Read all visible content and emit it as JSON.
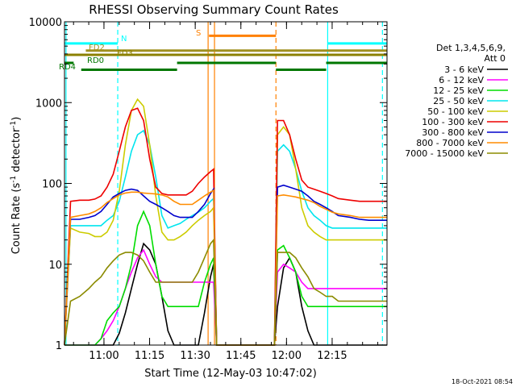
{
  "chart_data": {
    "type": "line",
    "title": "RHESSI Observing Summary Count Rates",
    "xlabel": "Start Time (12-May-03 10:47:02)",
    "ylabel_prefix": "Count Rate (s",
    "ylabel_sup": "-1",
    "ylabel_mid": " detector",
    "ylabel_suffix": ")",
    "footer": "18-Oct-2021 08:54",
    "ylog": true,
    "ylim": [
      1,
      10000
    ],
    "xlim_minutes_from_start": [
      0,
      106
    ],
    "y_ticks": [
      {
        "value": 1,
        "label": "1"
      },
      {
        "value": 10,
        "label": "10"
      },
      {
        "value": 100,
        "label": "100"
      },
      {
        "value": 1000,
        "label": "1000"
      },
      {
        "value": 10000,
        "label": "10000"
      }
    ],
    "x_ticks": [
      {
        "minute": 12.97,
        "label": "11:00"
      },
      {
        "minute": 27.97,
        "label": "11:15"
      },
      {
        "minute": 42.97,
        "label": "11:30"
      },
      {
        "minute": 57.97,
        "label": "11:45"
      },
      {
        "minute": 72.97,
        "label": "12:00"
      },
      {
        "minute": 87.97,
        "label": "12:15"
      }
    ],
    "legend_header": [
      "Det 1,3,4,5,6,9,",
      "Att 0"
    ],
    "series": [
      {
        "name": "3 - 6 keV",
        "color": "#000000",
        "x": [
          0,
          10,
          14,
          16,
          18,
          20,
          22,
          24,
          26,
          28,
          30,
          32,
          34,
          36,
          38,
          40,
          42,
          44,
          46,
          48,
          49,
          50,
          57,
          62,
          68,
          69,
          70,
          72,
          74,
          76,
          78,
          80,
          82,
          84,
          86,
          88,
          90,
          92,
          94,
          97,
          100,
          103,
          106
        ],
        "y": [
          1,
          1,
          1,
          1,
          1.4,
          2.5,
          5,
          10,
          18,
          15,
          10,
          4,
          1.5,
          1,
          1,
          1,
          1,
          1,
          2.5,
          7,
          10,
          1,
          1,
          1,
          1,
          1,
          3,
          9,
          12,
          8,
          3,
          1.5,
          1,
          1,
          1,
          1,
          1,
          1,
          1,
          1,
          1,
          1,
          1
        ]
      },
      {
        "name": "6 - 12 keV",
        "color": "#ff00ff",
        "x": [
          0,
          10,
          12,
          14,
          16,
          18,
          20,
          22,
          24,
          26,
          28,
          30,
          32,
          34,
          36,
          38,
          40,
          42,
          44,
          46,
          48,
          49,
          50,
          57,
          62,
          68,
          69,
          70,
          72,
          74,
          76,
          78,
          80,
          82,
          84,
          86,
          88,
          90,
          94,
          97,
          100,
          103,
          106
        ],
        "y": [
          1,
          1,
          1.2,
          1.5,
          2,
          3,
          5,
          8,
          12,
          15,
          10,
          7,
          6,
          6,
          6,
          6,
          6,
          6,
          6,
          6,
          6,
          6,
          1,
          1,
          1,
          1,
          1,
          8,
          10,
          9,
          8,
          6,
          5,
          5,
          5,
          5,
          5,
          5,
          5,
          5,
          5,
          5,
          5
        ]
      },
      {
        "name": "12 - 25 keV",
        "color": "#00dd00",
        "x": [
          0,
          10,
          12,
          14,
          16,
          18,
          20,
          22,
          24,
          26,
          28,
          30,
          32,
          34,
          36,
          38,
          40,
          42,
          44,
          46,
          48,
          49,
          50,
          57,
          62,
          68,
          69,
          70,
          72,
          74,
          76,
          78,
          80,
          82,
          84,
          86,
          88,
          90,
          94,
          97,
          100,
          103,
          106
        ],
        "y": [
          1,
          1,
          1.2,
          2,
          2.5,
          3,
          5,
          10,
          30,
          45,
          30,
          10,
          4,
          3,
          3,
          3,
          3,
          3,
          3,
          6,
          10,
          12,
          1,
          1,
          1,
          1,
          1,
          15,
          17,
          12,
          8,
          4,
          3,
          3,
          3,
          3,
          3,
          3,
          3,
          3,
          3,
          3,
          3
        ]
      },
      {
        "name": "25 - 50 keV",
        "color": "#00e5ee",
        "x": [
          0,
          2,
          5,
          8,
          10,
          12,
          14,
          16,
          18,
          20,
          22,
          24,
          26,
          28,
          30,
          32,
          34,
          36,
          38,
          40,
          42,
          44,
          46,
          48,
          49,
          50,
          57,
          62,
          68,
          69,
          70,
          72,
          74,
          76,
          78,
          80,
          82,
          84,
          86,
          88,
          90,
          94,
          97,
          100,
          103,
          106
        ],
        "y": [
          1,
          30,
          30,
          30,
          30,
          30,
          35,
          40,
          60,
          120,
          250,
          400,
          450,
          300,
          120,
          40,
          28,
          30,
          32,
          36,
          40,
          44,
          50,
          60,
          65,
          1,
          1,
          1,
          1,
          1,
          250,
          300,
          250,
          150,
          80,
          50,
          40,
          35,
          30,
          28,
          28,
          28,
          28,
          28,
          28,
          28
        ]
      },
      {
        "name": "50 - 100 keV",
        "color": "#cccc00",
        "x": [
          0,
          2,
          5,
          8,
          10,
          12,
          14,
          16,
          18,
          20,
          22,
          24,
          26,
          28,
          30,
          32,
          34,
          36,
          38,
          40,
          42,
          44,
          46,
          48,
          49,
          50,
          57,
          62,
          68,
          69,
          70,
          72,
          74,
          76,
          78,
          80,
          82,
          84,
          86,
          88,
          90,
          94,
          97,
          100,
          103,
          106
        ],
        "y": [
          1,
          28,
          25,
          24,
          22,
          22,
          25,
          35,
          80,
          300,
          800,
          1100,
          900,
          300,
          70,
          25,
          20,
          20,
          22,
          25,
          30,
          35,
          40,
          45,
          50,
          1,
          1,
          1,
          1,
          1,
          400,
          500,
          400,
          150,
          50,
          30,
          25,
          22,
          20,
          20,
          20,
          20,
          20,
          20,
          20,
          20
        ]
      },
      {
        "name": "100 - 300 keV",
        "color": "#ee0000",
        "x": [
          0,
          2,
          5,
          8,
          10,
          12,
          14,
          16,
          18,
          20,
          22,
          24,
          26,
          28,
          30,
          32,
          34,
          36,
          38,
          40,
          42,
          44,
          46,
          48,
          49,
          50,
          57,
          62,
          68,
          69,
          70,
          72,
          74,
          76,
          78,
          80,
          82,
          84,
          86,
          88,
          90,
          94,
          97,
          100,
          103,
          106
        ],
        "y": [
          1,
          60,
          62,
          62,
          64,
          70,
          90,
          130,
          250,
          500,
          800,
          850,
          600,
          200,
          90,
          75,
          72,
          72,
          72,
          72,
          80,
          100,
          120,
          140,
          150,
          1,
          1,
          1,
          1,
          1,
          600,
          600,
          400,
          200,
          110,
          90,
          85,
          80,
          75,
          70,
          65,
          62,
          60,
          60,
          60,
          60
        ]
      },
      {
        "name": "300 - 800 keV",
        "color": "#0000cc",
        "x": [
          0,
          2,
          5,
          8,
          10,
          12,
          14,
          16,
          18,
          20,
          22,
          24,
          26,
          28,
          30,
          32,
          34,
          36,
          38,
          40,
          42,
          44,
          46,
          48,
          49,
          50,
          57,
          62,
          68,
          69,
          70,
          72,
          74,
          76,
          78,
          80,
          82,
          84,
          86,
          88,
          90,
          94,
          97,
          100,
          103,
          106
        ],
        "y": [
          1,
          36,
          36,
          38,
          40,
          45,
          55,
          68,
          75,
          82,
          85,
          82,
          70,
          60,
          55,
          50,
          45,
          40,
          38,
          38,
          38,
          45,
          55,
          75,
          85,
          1,
          1,
          1,
          1,
          1,
          90,
          95,
          90,
          85,
          80,
          70,
          60,
          55,
          50,
          45,
          40,
          38,
          36,
          35,
          35,
          35
        ]
      },
      {
        "name": "800 - 7000 keV",
        "color": "#ff8c00",
        "x": [
          0,
          2,
          5,
          8,
          10,
          12,
          14,
          16,
          18,
          20,
          22,
          24,
          26,
          28,
          30,
          32,
          34,
          36,
          38,
          40,
          42,
          44,
          46,
          48,
          49,
          50,
          57,
          62,
          68,
          69,
          70,
          72,
          74,
          76,
          78,
          80,
          82,
          84,
          86,
          88,
          90,
          94,
          97,
          100,
          103,
          106
        ],
        "y": [
          1,
          38,
          40,
          42,
          45,
          50,
          58,
          65,
          72,
          76,
          78,
          78,
          76,
          75,
          74,
          72,
          68,
          60,
          55,
          55,
          55,
          62,
          70,
          78,
          82,
          1,
          1,
          1,
          1,
          1,
          70,
          72,
          70,
          68,
          65,
          62,
          58,
          52,
          48,
          44,
          42,
          40,
          38,
          38,
          38,
          38
        ]
      },
      {
        "name": "7000 - 15000 keV",
        "color": "#8b8b00",
        "x": [
          0,
          2,
          5,
          8,
          10,
          12,
          14,
          16,
          18,
          20,
          22,
          24,
          26,
          28,
          30,
          32,
          34,
          36,
          38,
          40,
          42,
          44,
          46,
          48,
          49,
          50,
          57,
          62,
          68,
          69,
          70,
          72,
          74,
          76,
          78,
          80,
          82,
          84,
          86,
          88,
          90,
          94,
          97,
          100,
          103,
          106
        ],
        "y": [
          1,
          3.5,
          4,
          5,
          6,
          7,
          9,
          11,
          13,
          14,
          14,
          13,
          11,
          8,
          6,
          6,
          6,
          6,
          6,
          6,
          6,
          8,
          12,
          18,
          20,
          1,
          1,
          1,
          1,
          1,
          14,
          14,
          14,
          12,
          9,
          7,
          5,
          4.5,
          4,
          4,
          3.5,
          3.5,
          3.5,
          3.5,
          3.5,
          3.5
        ]
      }
    ],
    "flag_bars": [
      {
        "label": "N",
        "color": "#00ffff",
        "ystart": 5400,
        "segments": [
          [
            0,
            17.5
          ],
          [
            86.5,
            106
          ]
        ]
      },
      {
        "label": "S",
        "color": "#ff8000",
        "ystart": 6700,
        "segments": [
          [
            47.5,
            69.5
          ]
        ]
      },
      {
        "label": "FD2",
        "color": "#a09020",
        "ystart": 4400,
        "segments": [
          [
            7,
            106
          ]
        ]
      },
      {
        "label": "FD3",
        "color": "#8b8000",
        "ystart": 3900,
        "segments": [
          [
            0,
            106
          ]
        ]
      },
      {
        "label": "RD0",
        "color": "#007700",
        "ystart": 3100,
        "segments": [
          [
            0,
            3
          ],
          [
            37,
            69.5
          ],
          [
            86,
            106
          ]
        ]
      },
      {
        "label": "RD4",
        "color": "#007700",
        "ystart": 2550,
        "segments": [
          [
            5.5,
            37
          ],
          [
            69.5,
            86
          ]
        ]
      }
    ],
    "vertical_markers": [
      {
        "x": 0.5,
        "color": "#00ffff",
        "style": "solid"
      },
      {
        "x": 17.5,
        "color": "#00ffff",
        "style": "dashed"
      },
      {
        "x": 47.2,
        "color": "#ff8000",
        "style": "solid"
      },
      {
        "x": 49.3,
        "color": "#ff8000",
        "style": "solid"
      },
      {
        "x": 69.5,
        "color": "#ff8000",
        "style": "dashed"
      },
      {
        "x": 86.5,
        "color": "#00ffff",
        "style": "solid"
      },
      {
        "x": 104.5,
        "color": "#00ffff",
        "style": "dashed"
      }
    ]
  }
}
